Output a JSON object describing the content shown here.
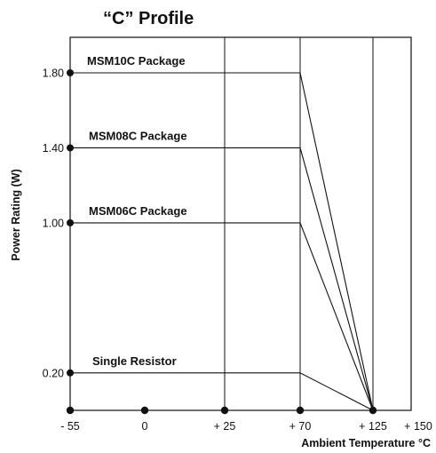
{
  "chart_data": {
    "type": "line",
    "title": "“C” Profile",
    "xlabel": "Ambient Temperature °C",
    "ylabel": "Power Rating (W)",
    "x_ticks": [
      "- 55",
      "0",
      "+ 25",
      "+ 70",
      "+ 125",
      "+ 150"
    ],
    "y_ticks": [
      "1.80",
      "1.40",
      "1.00",
      "0.20"
    ],
    "grid": true,
    "series": [
      {
        "name": "MSM10C Package",
        "points": [
          [
            "-55",
            1.8
          ],
          [
            "+70",
            1.8
          ],
          [
            "+125",
            0
          ]
        ]
      },
      {
        "name": "MSM08C Package",
        "points": [
          [
            "-55",
            1.4
          ],
          [
            "+70",
            1.4
          ],
          [
            "+125",
            0
          ]
        ]
      },
      {
        "name": "MSM06C Package",
        "points": [
          [
            "-55",
            1.0
          ],
          [
            "+70",
            1.0
          ],
          [
            "+125",
            0
          ]
        ]
      },
      {
        "name": "Single Resistor",
        "points": [
          [
            "-55",
            0.2
          ],
          [
            "+70",
            0.2
          ],
          [
            "+125",
            0
          ]
        ]
      }
    ],
    "color": "#111111"
  }
}
